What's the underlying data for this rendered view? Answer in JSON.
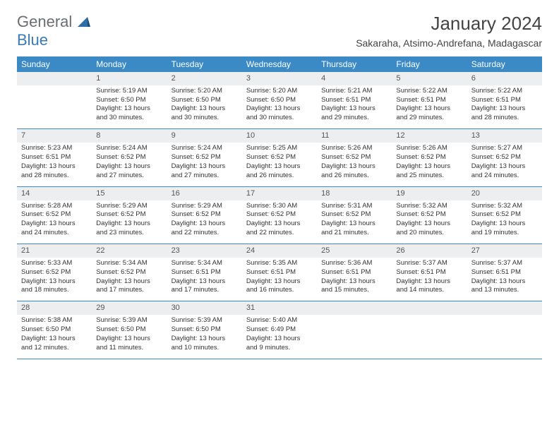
{
  "logo": {
    "line1": "General",
    "line2": "Blue"
  },
  "title": "January 2024",
  "location": "Sakaraha, Atsimo-Andrefana, Madagascar",
  "colors": {
    "header_bg": "#3b8ac6",
    "header_text": "#ffffff",
    "daynum_bg": "#eceeef",
    "border": "#3b8ac6",
    "body_text": "#333333",
    "title_text": "#444444"
  },
  "day_names": [
    "Sunday",
    "Monday",
    "Tuesday",
    "Wednesday",
    "Thursday",
    "Friday",
    "Saturday"
  ],
  "weeks": [
    {
      "nums": [
        "",
        "1",
        "2",
        "3",
        "4",
        "5",
        "6"
      ],
      "cells": [
        {
          "sunrise": "",
          "sunset": "",
          "daylight": ""
        },
        {
          "sunrise": "Sunrise: 5:19 AM",
          "sunset": "Sunset: 6:50 PM",
          "daylight": "Daylight: 13 hours and 30 minutes."
        },
        {
          "sunrise": "Sunrise: 5:20 AM",
          "sunset": "Sunset: 6:50 PM",
          "daylight": "Daylight: 13 hours and 30 minutes."
        },
        {
          "sunrise": "Sunrise: 5:20 AM",
          "sunset": "Sunset: 6:50 PM",
          "daylight": "Daylight: 13 hours and 30 minutes."
        },
        {
          "sunrise": "Sunrise: 5:21 AM",
          "sunset": "Sunset: 6:51 PM",
          "daylight": "Daylight: 13 hours and 29 minutes."
        },
        {
          "sunrise": "Sunrise: 5:22 AM",
          "sunset": "Sunset: 6:51 PM",
          "daylight": "Daylight: 13 hours and 29 minutes."
        },
        {
          "sunrise": "Sunrise: 5:22 AM",
          "sunset": "Sunset: 6:51 PM",
          "daylight": "Daylight: 13 hours and 28 minutes."
        }
      ]
    },
    {
      "nums": [
        "7",
        "8",
        "9",
        "10",
        "11",
        "12",
        "13"
      ],
      "cells": [
        {
          "sunrise": "Sunrise: 5:23 AM",
          "sunset": "Sunset: 6:51 PM",
          "daylight": "Daylight: 13 hours and 28 minutes."
        },
        {
          "sunrise": "Sunrise: 5:24 AM",
          "sunset": "Sunset: 6:52 PM",
          "daylight": "Daylight: 13 hours and 27 minutes."
        },
        {
          "sunrise": "Sunrise: 5:24 AM",
          "sunset": "Sunset: 6:52 PM",
          "daylight": "Daylight: 13 hours and 27 minutes."
        },
        {
          "sunrise": "Sunrise: 5:25 AM",
          "sunset": "Sunset: 6:52 PM",
          "daylight": "Daylight: 13 hours and 26 minutes."
        },
        {
          "sunrise": "Sunrise: 5:26 AM",
          "sunset": "Sunset: 6:52 PM",
          "daylight": "Daylight: 13 hours and 26 minutes."
        },
        {
          "sunrise": "Sunrise: 5:26 AM",
          "sunset": "Sunset: 6:52 PM",
          "daylight": "Daylight: 13 hours and 25 minutes."
        },
        {
          "sunrise": "Sunrise: 5:27 AM",
          "sunset": "Sunset: 6:52 PM",
          "daylight": "Daylight: 13 hours and 24 minutes."
        }
      ]
    },
    {
      "nums": [
        "14",
        "15",
        "16",
        "17",
        "18",
        "19",
        "20"
      ],
      "cells": [
        {
          "sunrise": "Sunrise: 5:28 AM",
          "sunset": "Sunset: 6:52 PM",
          "daylight": "Daylight: 13 hours and 24 minutes."
        },
        {
          "sunrise": "Sunrise: 5:29 AM",
          "sunset": "Sunset: 6:52 PM",
          "daylight": "Daylight: 13 hours and 23 minutes."
        },
        {
          "sunrise": "Sunrise: 5:29 AM",
          "sunset": "Sunset: 6:52 PM",
          "daylight": "Daylight: 13 hours and 22 minutes."
        },
        {
          "sunrise": "Sunrise: 5:30 AM",
          "sunset": "Sunset: 6:52 PM",
          "daylight": "Daylight: 13 hours and 22 minutes."
        },
        {
          "sunrise": "Sunrise: 5:31 AM",
          "sunset": "Sunset: 6:52 PM",
          "daylight": "Daylight: 13 hours and 21 minutes."
        },
        {
          "sunrise": "Sunrise: 5:32 AM",
          "sunset": "Sunset: 6:52 PM",
          "daylight": "Daylight: 13 hours and 20 minutes."
        },
        {
          "sunrise": "Sunrise: 5:32 AM",
          "sunset": "Sunset: 6:52 PM",
          "daylight": "Daylight: 13 hours and 19 minutes."
        }
      ]
    },
    {
      "nums": [
        "21",
        "22",
        "23",
        "24",
        "25",
        "26",
        "27"
      ],
      "cells": [
        {
          "sunrise": "Sunrise: 5:33 AM",
          "sunset": "Sunset: 6:52 PM",
          "daylight": "Daylight: 13 hours and 18 minutes."
        },
        {
          "sunrise": "Sunrise: 5:34 AM",
          "sunset": "Sunset: 6:52 PM",
          "daylight": "Daylight: 13 hours and 17 minutes."
        },
        {
          "sunrise": "Sunrise: 5:34 AM",
          "sunset": "Sunset: 6:51 PM",
          "daylight": "Daylight: 13 hours and 17 minutes."
        },
        {
          "sunrise": "Sunrise: 5:35 AM",
          "sunset": "Sunset: 6:51 PM",
          "daylight": "Daylight: 13 hours and 16 minutes."
        },
        {
          "sunrise": "Sunrise: 5:36 AM",
          "sunset": "Sunset: 6:51 PM",
          "daylight": "Daylight: 13 hours and 15 minutes."
        },
        {
          "sunrise": "Sunrise: 5:37 AM",
          "sunset": "Sunset: 6:51 PM",
          "daylight": "Daylight: 13 hours and 14 minutes."
        },
        {
          "sunrise": "Sunrise: 5:37 AM",
          "sunset": "Sunset: 6:51 PM",
          "daylight": "Daylight: 13 hours and 13 minutes."
        }
      ]
    },
    {
      "nums": [
        "28",
        "29",
        "30",
        "31",
        "",
        "",
        ""
      ],
      "cells": [
        {
          "sunrise": "Sunrise: 5:38 AM",
          "sunset": "Sunset: 6:50 PM",
          "daylight": "Daylight: 13 hours and 12 minutes."
        },
        {
          "sunrise": "Sunrise: 5:39 AM",
          "sunset": "Sunset: 6:50 PM",
          "daylight": "Daylight: 13 hours and 11 minutes."
        },
        {
          "sunrise": "Sunrise: 5:39 AM",
          "sunset": "Sunset: 6:50 PM",
          "daylight": "Daylight: 13 hours and 10 minutes."
        },
        {
          "sunrise": "Sunrise: 5:40 AM",
          "sunset": "Sunset: 6:49 PM",
          "daylight": "Daylight: 13 hours and 9 minutes."
        },
        {
          "sunrise": "",
          "sunset": "",
          "daylight": ""
        },
        {
          "sunrise": "",
          "sunset": "",
          "daylight": ""
        },
        {
          "sunrise": "",
          "sunset": "",
          "daylight": ""
        }
      ]
    }
  ]
}
